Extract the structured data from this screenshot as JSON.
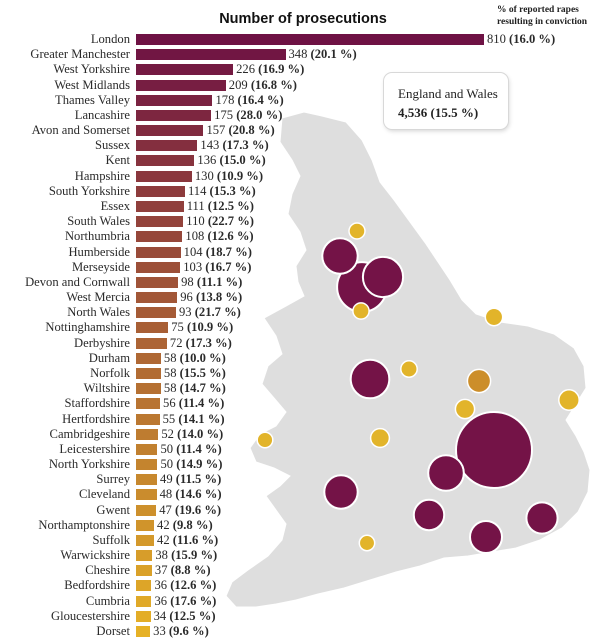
{
  "title": "Number of prosecutions",
  "column_note": "% of reported rapes resulting in conviction",
  "summary": {
    "label": "England and Wales",
    "value": "4,536 (15.5 %)"
  },
  "colors": {
    "bar_start": "#6e1244",
    "bar_end": "#e6b126",
    "bubble_large": "#741347",
    "bubble_small": "#e2b42a",
    "bubble_mid": "#cc8e2a",
    "map_fill": "#dedede"
  },
  "chart_data": {
    "type": "bar",
    "orientation": "horizontal",
    "title": "Number of prosecutions",
    "value_label": "% of reported rapes resulting in conviction",
    "categories": [
      "London",
      "Greater Manchester",
      "West Yorkshire",
      "West Midlands",
      "Thames Valley",
      "Lancashire",
      "Avon and Somerset",
      "Sussex",
      "Kent",
      "Hampshire",
      "South Yorkshire",
      "Essex",
      "South Wales",
      "Northumbria",
      "Humberside",
      "Merseyside",
      "Devon and Cornwall",
      "West Mercia",
      "North Wales",
      "Nottinghamshire",
      "Derbyshire",
      "Durham",
      "Norfolk",
      "Wiltshire",
      "Staffordshire",
      "Hertfordshire",
      "Cambridgeshire",
      "Leicestershire",
      "North Yorkshire",
      "Surrey",
      "Cleveland",
      "Gwent",
      "Northamptonshire",
      "Suffolk",
      "Warwickshire",
      "Cheshire",
      "Bedfordshire",
      "Cumbria",
      "Gloucestershire",
      "Dorset"
    ],
    "values": [
      810,
      348,
      226,
      209,
      178,
      175,
      157,
      143,
      136,
      130,
      114,
      111,
      110,
      108,
      104,
      103,
      98,
      96,
      93,
      75,
      72,
      58,
      58,
      58,
      56,
      55,
      52,
      50,
      50,
      49,
      48,
      47,
      42,
      42,
      38,
      37,
      36,
      36,
      34,
      33
    ],
    "conviction_rates": [
      "(16.0 %)",
      "(20.1 %)",
      "(16.9 %)",
      "(16.8 %)",
      "(16.4 %)",
      "(28.0 %)",
      "(20.8 %)",
      "(17.3 %)",
      "(15.0 %)",
      "(10.9 %)",
      "(15.3 %)",
      "(12.5 %)",
      "(22.7 %)",
      "(12.6 %)",
      "(18.7 %)",
      "(16.7 %)",
      "(11.1 %)",
      "(13.8 %)",
      "(21.7 %)",
      "(10.9 %)",
      "(17.3 %)",
      "(10.0 %)",
      "(15.5 %)",
      "(14.7 %)",
      "(11.4 %)",
      "(14.1 %)",
      "(14.0 %)",
      "(11.4 %)",
      "(14.9 %)",
      "(11.5 %)",
      "(14.6 %)",
      "(19.6 %)",
      "(9.8 %)",
      "(11.6 %)",
      "(15.9 %)",
      "(8.8 %)",
      "(12.6 %)",
      "(17.6 %)",
      "(12.5 %)",
      "(9.6 %)"
    ],
    "bubbles": [
      {
        "region": "London",
        "value": 810
      },
      {
        "region": "Greater Manchester",
        "value": 348
      },
      {
        "region": "West Yorkshire",
        "value": 226
      },
      {
        "region": "West Midlands",
        "value": 209
      },
      {
        "region": "Thames Valley",
        "value": 178
      },
      {
        "region": "Lancashire",
        "value": 175
      },
      {
        "region": "Avon and Somerset",
        "value": 157
      },
      {
        "region": "Sussex",
        "value": 143
      },
      {
        "region": "Kent",
        "value": 136
      },
      {
        "region": "Hampshire",
        "value": 130
      },
      {
        "region": "Nottinghamshire",
        "value": 75
      },
      {
        "region": "Norfolk",
        "value": 58
      },
      {
        "region": "Cumbria",
        "value": 36
      },
      {
        "region": "Cheshire",
        "value": 37
      },
      {
        "region": "Leicestershire",
        "value": 50
      },
      {
        "region": "Cambridgeshire",
        "value": 52
      },
      {
        "region": "Suffolk",
        "value": 42
      },
      {
        "region": "Gloucestershire",
        "value": 34
      },
      {
        "region": "Dorset",
        "value": 33
      },
      {
        "region": "Warwickshire",
        "value": 38
      }
    ]
  }
}
